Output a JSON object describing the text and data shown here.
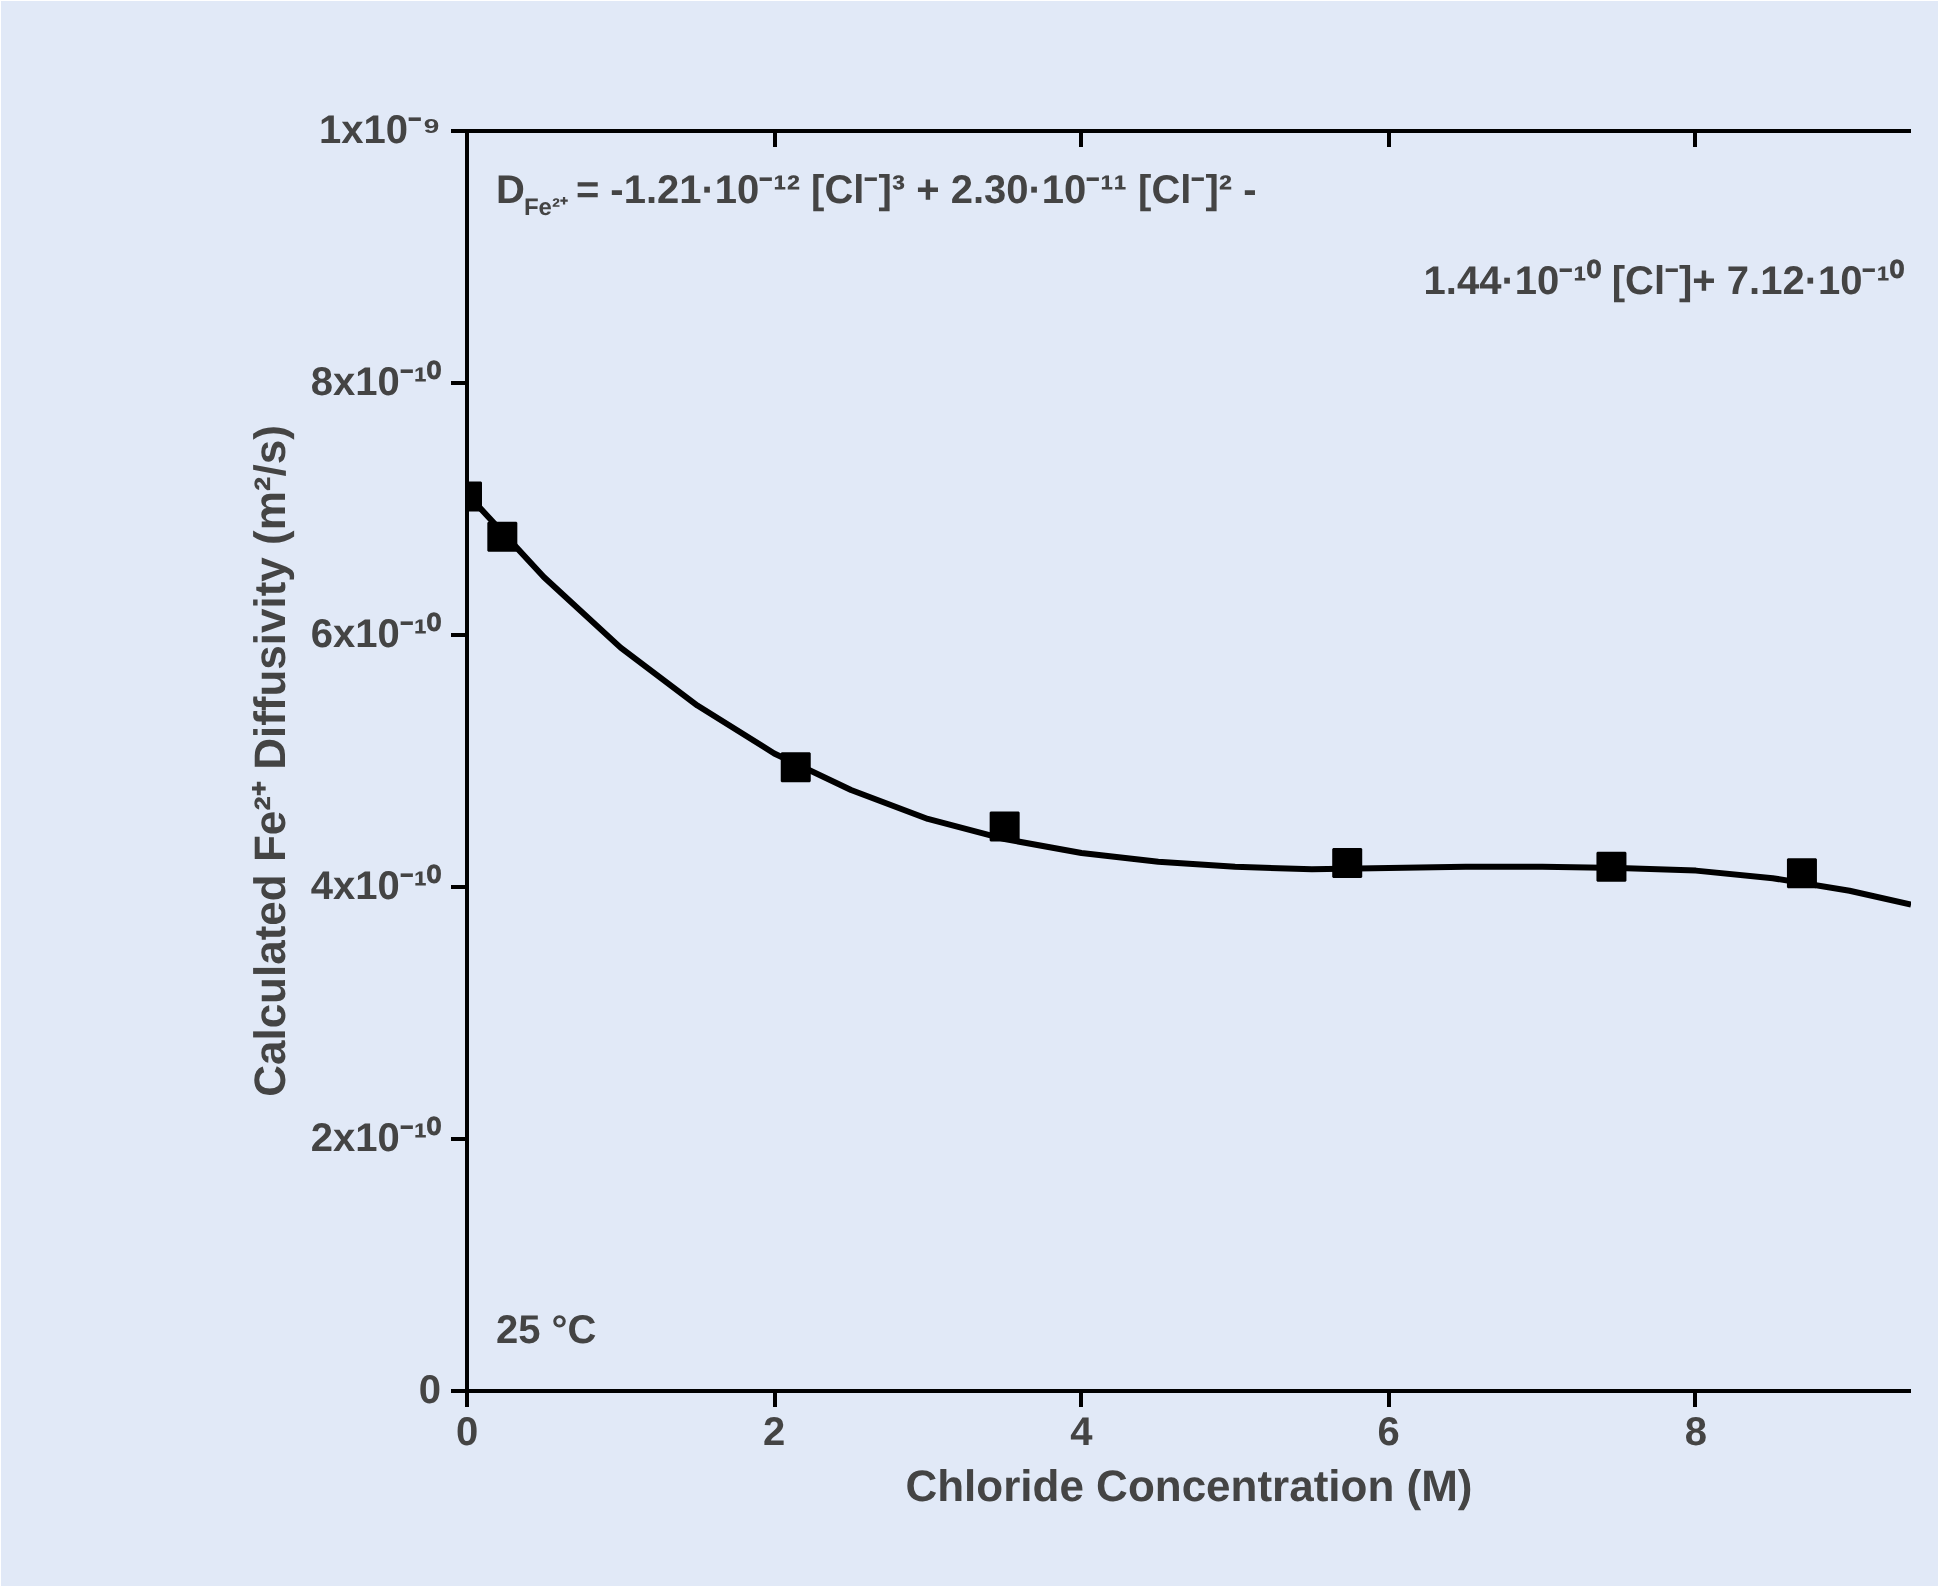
{
  "chart_data": {
    "type": "scatter",
    "xlabel": "Chloride Concentration (M)",
    "ylabel": "Calculated Fe²⁺ Diffusivity (m²/s)",
    "annotations": [
      "D$_{Fe²⁺}$ = -1.21·10⁻¹² [Cl⁻]³ + 2.30·10⁻¹¹ [Cl⁻]² -",
      "1.44·10⁻¹⁰ [Cl⁻]+ 7.12·10⁻¹⁰",
      "25 °C"
    ],
    "series": [
      {
        "color": "#000000",
        "marker": "square",
        "x": [
          0,
          0.23,
          2.14,
          3.5,
          5.73,
          7.45,
          8.69
        ],
        "values": [
          7.1e-10,
          6.78e-10,
          4.95e-10,
          4.48e-10,
          4.19e-10,
          4.16e-10,
          4.11e-10
        ]
      },
      {
        "type": "line",
        "color": "#000000",
        "marker": "none",
        "line_style": "solid",
        "x": [
          0,
          0.5,
          1,
          1.5,
          2,
          2.5,
          3,
          3.5,
          4,
          4.5,
          5,
          5.5,
          6,
          6.5,
          7,
          7.5,
          8,
          8.5,
          9,
          9.4
        ],
        "values": [
          7.12e-10,
          6.46e-10,
          5.9e-10,
          5.44e-10,
          5.06e-10,
          4.77e-10,
          4.54e-10,
          4.38e-10,
          4.27e-10,
          4.2e-10,
          4.16e-10,
          4.14e-10,
          4.15e-10,
          4.16e-10,
          4.16e-10,
          4.15e-10,
          4.13e-10,
          4.07e-10,
          3.97e-10,
          3.86e-10
        ]
      }
    ],
    "xlim": [
      0,
      9.4
    ],
    "xticks": [
      0,
      2,
      4,
      6,
      8
    ],
    "ylim": [
      0,
      1e-09
    ],
    "yticks": [
      0,
      {
        "value": 2e-10,
        "label": "2x10⁻¹⁰"
      },
      {
        "value": 4e-10,
        "label": "4x10⁻¹⁰"
      },
      {
        "value": 6e-10,
        "label": "6x10⁻¹⁰"
      },
      {
        "value": 8e-10,
        "label": "8x10⁻¹⁰"
      },
      {
        "value": 1e-09,
        "label": "1x10⁻⁹"
      }
    ],
    "grid": false
  }
}
